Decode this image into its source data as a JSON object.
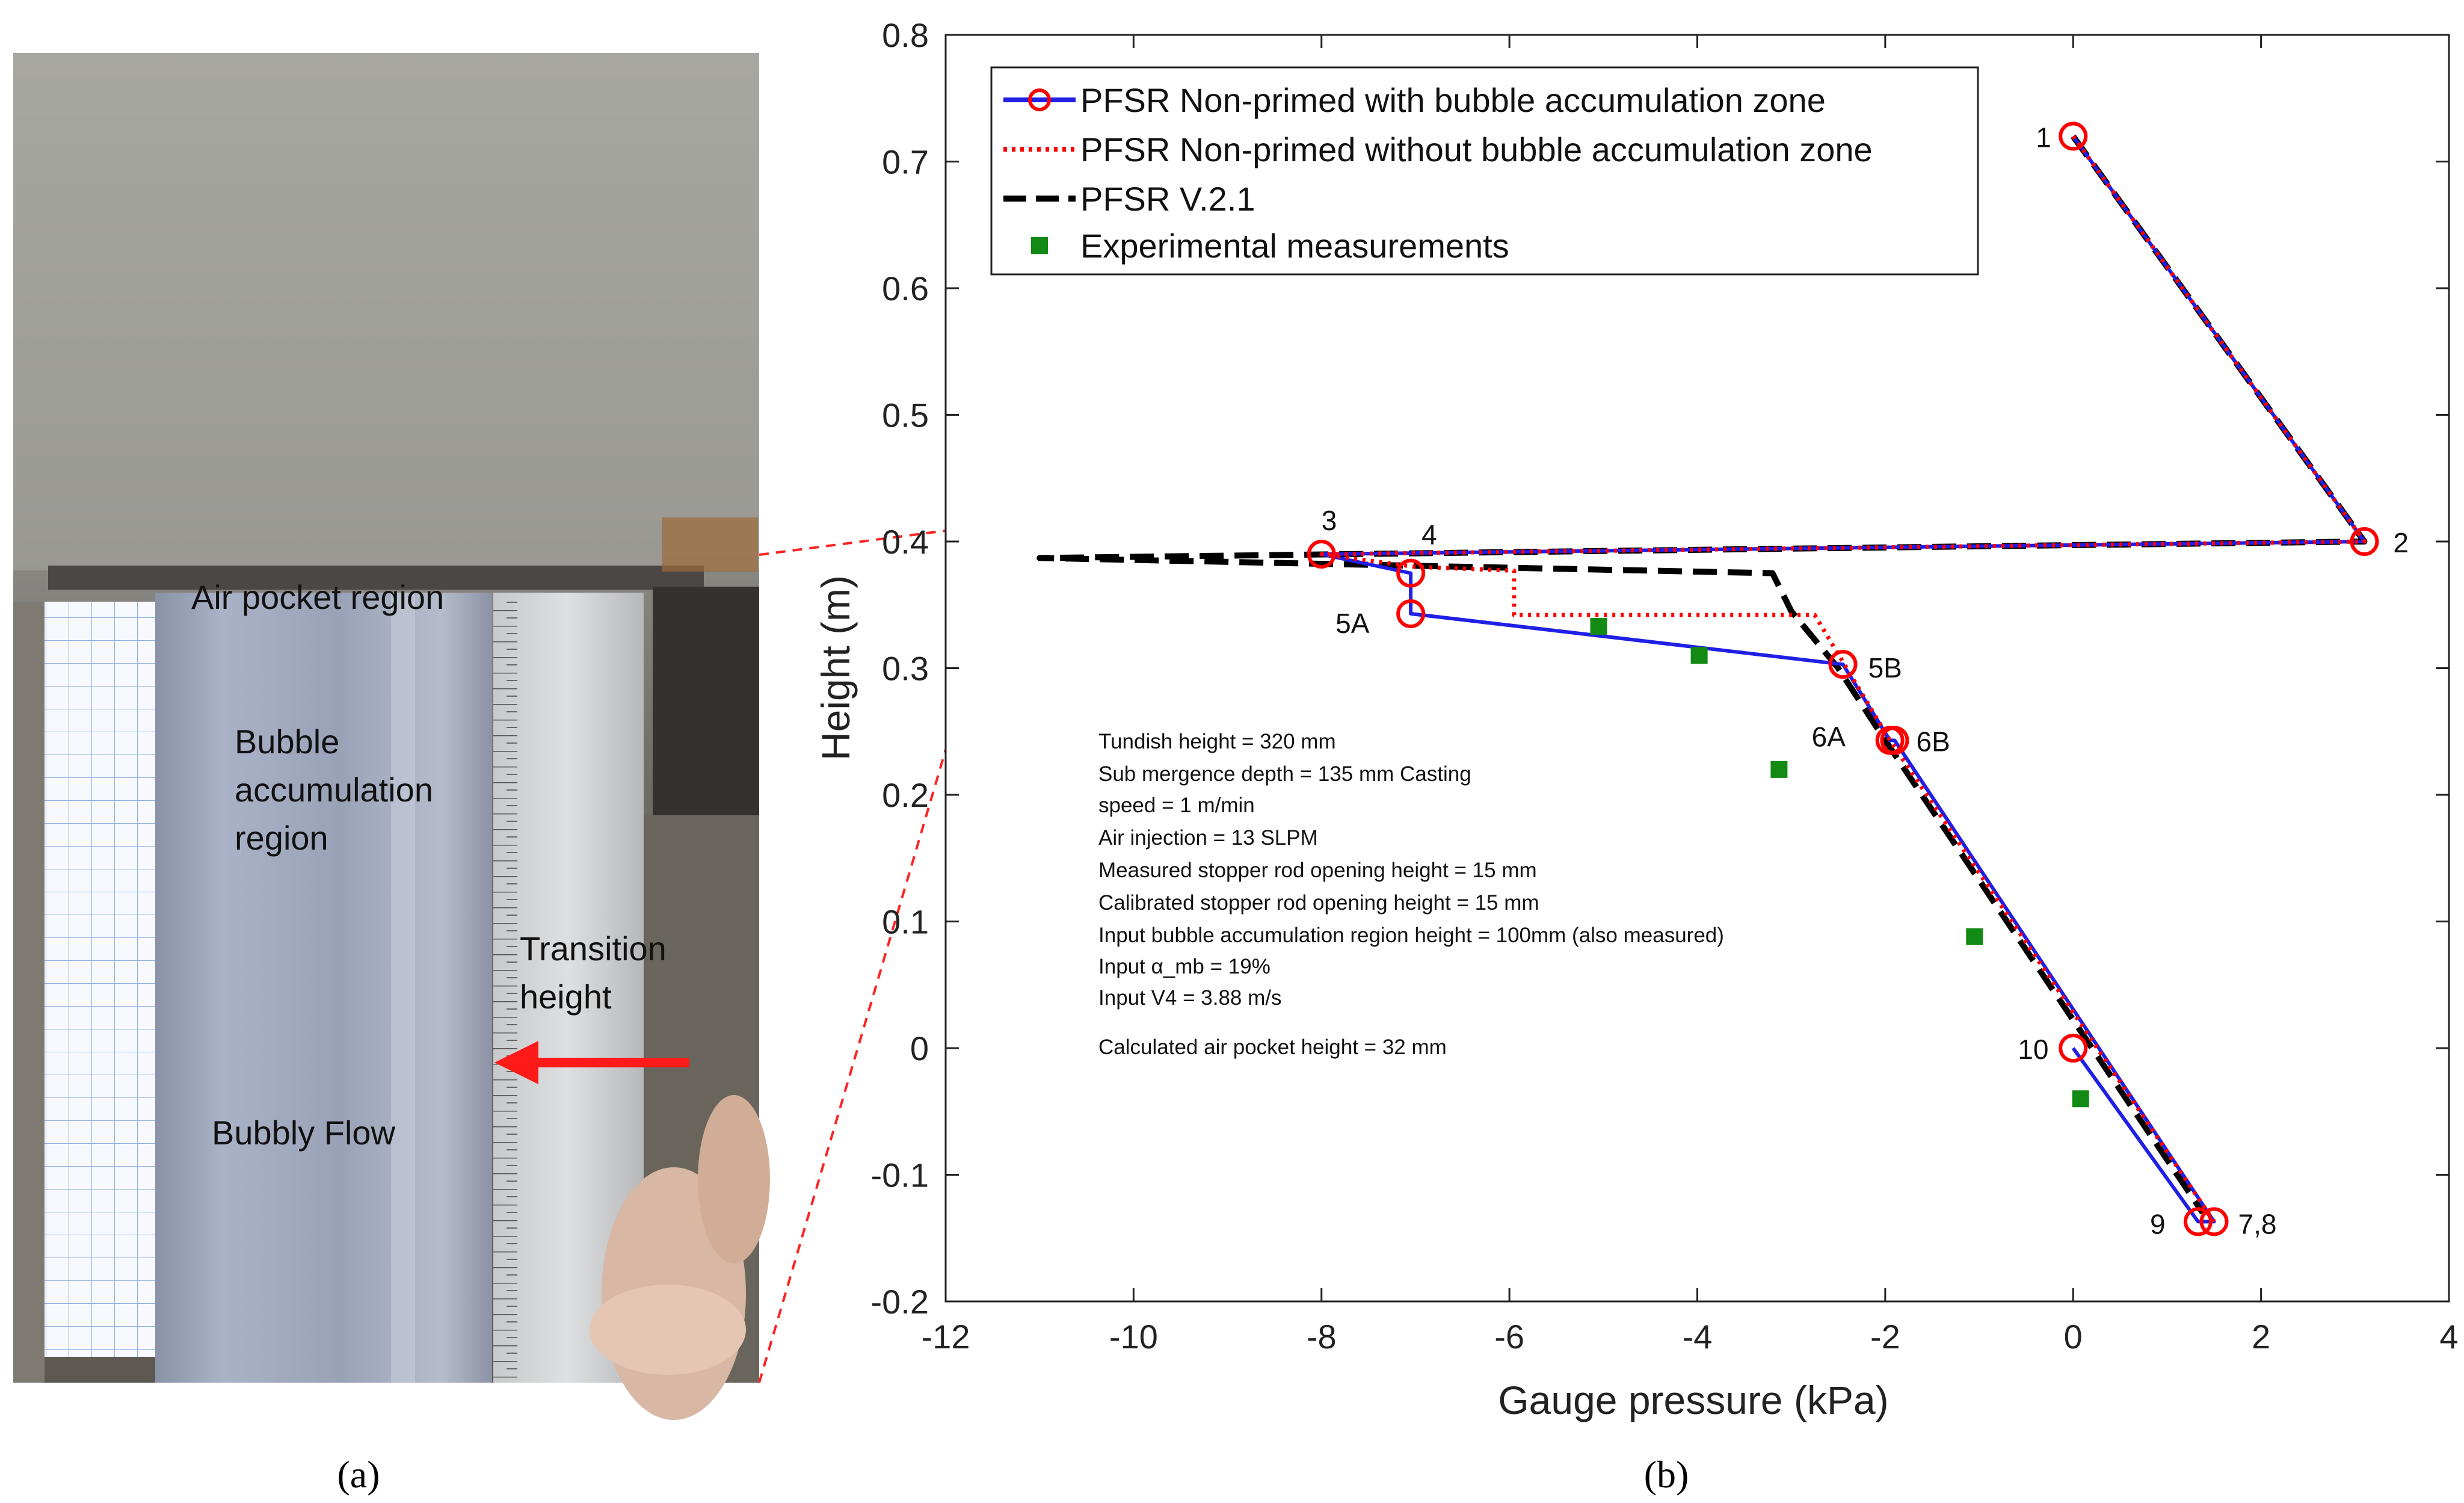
{
  "panel_a": {
    "labels": {
      "air_pocket": "Air pocket region",
      "bubble_line1": "Bubble",
      "bubble_line2": "accumulation",
      "bubble_line3": "region",
      "transition_line1": "Transition",
      "transition_line2": "height",
      "bubbly_flow": "Bubbly Flow"
    },
    "caption": "(a)"
  },
  "panel_b": {
    "caption": "(b)",
    "notes": [
      "Tundish height = 320 mm",
      "Sub mergence depth = 135 mm Casting",
      "speed = 1 m/min",
      "Air injection = 13 SLPM",
      "Measured stopper rod opening height = 15 mm",
      "Calibrated stopper rod opening height = 15 mm",
      "Input bubble accumulation region height = 100mm (also measured)",
      "Input α_mb = 19%",
      "Input V4 = 3.88 m/s",
      "Calculated air pocket height = 32 mm"
    ]
  },
  "colors": {
    "blue_series": "#1f1fe6",
    "red_series": "#ff0000",
    "black_series": "#000000",
    "experimental": "#138a13",
    "arrow": "#ff1a1a"
  },
  "chart_data": {
    "type": "line",
    "title": "",
    "xlabel": "Gauge pressure (kPa)",
    "ylabel": "Height (m)",
    "xlim": [
      -12,
      4
    ],
    "ylim": [
      -0.2,
      0.8
    ],
    "xticks": [
      -12,
      -10,
      -8,
      -6,
      -4,
      -2,
      0,
      2,
      4
    ],
    "yticks": [
      -0.2,
      -0.1,
      0,
      0.1,
      0.2,
      0.3,
      0.4,
      0.5,
      0.6,
      0.7,
      0.8
    ],
    "grid": false,
    "legend_position": "top-left",
    "series": [
      {
        "name": "PFSR Non-primed with bubble accumulation zone",
        "style": "blue solid line with red circle markers",
        "x": [
          0.0,
          3.1,
          -8.0,
          -7.05,
          -7.05,
          -2.45,
          -1.95,
          -1.9,
          1.5,
          1.33,
          0.0
        ],
        "y": [
          0.72,
          0.4,
          0.39,
          0.375,
          0.343,
          0.303,
          0.243,
          0.243,
          -0.137,
          -0.137,
          0.0
        ]
      },
      {
        "name": "PFSR Non-primed without bubble accumulation zone",
        "style": "red dotted line",
        "x": [
          0.0,
          3.1,
          -8.0,
          -7.0,
          -5.95,
          -5.95,
          -2.75,
          -1.95,
          1.5
        ],
        "y": [
          0.72,
          0.4,
          0.39,
          0.38,
          0.377,
          0.342,
          0.342,
          0.243,
          -0.137
        ]
      },
      {
        "name": "PFSR V.2.1",
        "style": "black dashed line",
        "x": [
          0.0,
          3.1,
          -11.0,
          -3.2,
          -3.0,
          -2.5,
          -2.0,
          1.38
        ],
        "y": [
          0.72,
          0.4,
          0.387,
          0.375,
          0.345,
          0.3,
          0.243,
          -0.13
        ]
      },
      {
        "name": "Experimental measurements",
        "style": "green square markers",
        "x": [
          -5.05,
          -3.98,
          -3.13,
          -1.05,
          0.08
        ],
        "y": [
          0.333,
          0.31,
          0.22,
          0.088,
          -0.04
        ]
      }
    ],
    "point_labels": [
      {
        "label": "1",
        "x": 0.0,
        "y": 0.72
      },
      {
        "label": "2",
        "x": 3.1,
        "y": 0.4
      },
      {
        "label": "3",
        "x": -8.0,
        "y": 0.39
      },
      {
        "label": "4",
        "x": -7.05,
        "y": 0.375
      },
      {
        "label": "5A",
        "x": -7.05,
        "y": 0.343
      },
      {
        "label": "5B",
        "x": -2.45,
        "y": 0.303
      },
      {
        "label": "6A",
        "x": -1.95,
        "y": 0.243
      },
      {
        "label": "6B",
        "x": -1.9,
        "y": 0.243
      },
      {
        "label": "7,8",
        "x": 1.5,
        "y": -0.137
      },
      {
        "label": "9",
        "x": 1.33,
        "y": -0.137
      },
      {
        "label": "10",
        "x": 0.0,
        "y": 0.0
      }
    ]
  }
}
